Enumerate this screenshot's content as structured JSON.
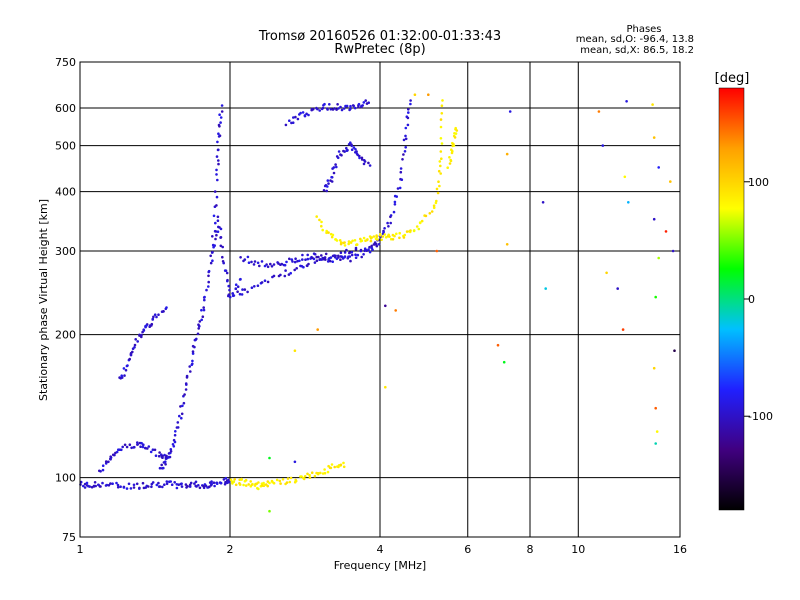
{
  "chart_data": {
    "type": "scatter",
    "title": "Tromsø 20160526 01:32:00-01:33:43",
    "subtitle": "RwPretec (8p)",
    "xlabel": "Frequency [MHz]",
    "ylabel": "Stationary phase Virtual Height [km]",
    "x_scale": "log",
    "y_scale": "log",
    "xlim": [
      1,
      16
    ],
    "ylim": [
      75,
      750
    ],
    "xticks": [
      1,
      2,
      4,
      6,
      8,
      10,
      16
    ],
    "yticks": [
      75,
      100,
      200,
      300,
      400,
      500,
      600,
      750
    ],
    "grid": true,
    "phase_box": {
      "title": "Phases",
      "line1": "mean, sd,O: -96.4, 13.8",
      "line2": "mean, sd,X:  86.5, 18.2"
    },
    "colorbar": {
      "label": "[deg]",
      "ticks": [
        100,
        0,
        -100
      ],
      "range": [
        -180,
        180
      ],
      "colors": [
        "#000000",
        "#400080",
        "#2020ff",
        "#00c0ff",
        "#00ff00",
        "#ffff00",
        "#ffa000",
        "#ff0000"
      ]
    },
    "series": [
      {
        "phase": -96,
        "traces": [
          {
            "x": [
              1.0,
              1.05,
              1.1,
              1.2,
              1.3,
              1.4,
              1.5,
              1.6,
              1.7,
              1.8,
              1.85,
              1.95,
              2.0
            ],
            "y": [
              97,
              96,
              97,
              96,
              96,
              97,
              97,
              96,
              97,
              96,
              97,
              98,
              99
            ]
          },
          {
            "x": [
              1.1,
              1.15,
              1.2,
              1.3,
              1.35,
              1.45,
              1.5
            ],
            "y": [
              103,
              110,
              115,
              118,
              116,
              112,
              110
            ]
          },
          {
            "x": [
              1.2,
              1.25,
              1.3,
              1.35,
              1.4,
              1.5
            ],
            "y": [
              160,
              175,
              195,
              205,
              215,
              230
            ]
          },
          {
            "x": [
              1.45,
              1.5,
              1.55,
              1.6,
              1.65,
              1.7,
              1.75,
              1.8,
              1.85,
              1.88,
              1.9,
              1.92
            ],
            "y": [
              105,
              110,
              120,
              140,
              165,
              190,
              215,
              250,
              310,
              420,
              520,
              600
            ]
          },
          {
            "x": [
              1.85,
              1.9,
              1.95,
              2.0,
              2.1
            ],
            "y": [
              300,
              350,
              280,
              240,
              260
            ]
          },
          {
            "x": [
              2.0,
              2.2,
              2.5,
              2.8,
              3.0,
              3.3,
              3.6,
              4.0
            ],
            "y": [
              240,
              250,
              265,
              280,
              290,
              295,
              300,
              310
            ]
          },
          {
            "x": [
              2.1,
              2.3,
              2.5,
              2.7,
              2.9,
              3.1,
              3.3,
              3.5,
              3.8,
              4.0,
              4.2,
              4.4,
              4.5,
              4.6
            ],
            "y": [
              290,
              282,
              280,
              287,
              294,
              290,
              288,
              290,
              300,
              320,
              350,
              420,
              520,
              630
            ]
          },
          {
            "x": [
              2.6,
              2.8,
              3.0,
              3.2,
              3.4,
              3.6,
              3.8
            ],
            "y": [
              560,
              580,
              600,
              605,
              600,
              610,
              615
            ]
          },
          {
            "x": [
              3.1,
              3.2,
              3.3,
              3.5,
              3.6,
              3.8
            ],
            "y": [
              400,
              430,
              480,
              500,
              480,
              450
            ]
          }
        ]
      },
      {
        "phase": 86,
        "traces": [
          {
            "x": [
              2.0,
              2.1,
              2.2,
              2.3,
              2.4,
              2.6,
              2.8,
              3.0,
              3.2,
              3.4
            ],
            "y": [
              98,
              98,
              97,
              96,
              97,
              98,
              100,
              102,
              105,
              106
            ]
          },
          {
            "x": [
              3.0,
              3.2,
              3.4,
              3.6,
              3.8,
              4.0,
              4.2,
              4.5,
              4.8,
              5.2,
              5.3,
              5.35
            ],
            "y": [
              350,
              320,
              310,
              312,
              318,
              322,
              320,
              325,
              340,
              380,
              460,
              620
            ]
          },
          {
            "x": [
              5.5,
              5.6,
              5.7
            ],
            "y": [
              450,
              500,
              550
            ]
          }
        ]
      }
    ],
    "scattered_points": [
      {
        "x": 7.3,
        "y": 590,
        "phase": -90
      },
      {
        "x": 7.2,
        "y": 480,
        "phase": 120
      },
      {
        "x": 7.2,
        "y": 310,
        "phase": 110
      },
      {
        "x": 6.9,
        "y": 190,
        "phase": 150
      },
      {
        "x": 7.1,
        "y": 175,
        "phase": 20
      },
      {
        "x": 8.6,
        "y": 250,
        "phase": -20
      },
      {
        "x": 8.5,
        "y": 380,
        "phase": -100
      },
      {
        "x": 11.0,
        "y": 590,
        "phase": 140
      },
      {
        "x": 11.2,
        "y": 500,
        "phase": -90
      },
      {
        "x": 11.4,
        "y": 270,
        "phase": 100
      },
      {
        "x": 12.0,
        "y": 250,
        "phase": -100
      },
      {
        "x": 12.5,
        "y": 620,
        "phase": -90
      },
      {
        "x": 12.4,
        "y": 430,
        "phase": 80
      },
      {
        "x": 12.6,
        "y": 380,
        "phase": -30
      },
      {
        "x": 12.3,
        "y": 205,
        "phase": 160
      },
      {
        "x": 14.1,
        "y": 610,
        "phase": 90
      },
      {
        "x": 14.2,
        "y": 520,
        "phase": 110
      },
      {
        "x": 14.5,
        "y": 450,
        "phase": -80
      },
      {
        "x": 14.2,
        "y": 350,
        "phase": -100
      },
      {
        "x": 14.5,
        "y": 290,
        "phase": 60
      },
      {
        "x": 14.3,
        "y": 240,
        "phase": 30
      },
      {
        "x": 14.2,
        "y": 170,
        "phase": 100
      },
      {
        "x": 14.3,
        "y": 140,
        "phase": 150
      },
      {
        "x": 14.4,
        "y": 125,
        "phase": 80
      },
      {
        "x": 14.3,
        "y": 118,
        "phase": -10
      },
      {
        "x": 15.0,
        "y": 330,
        "phase": 170
      },
      {
        "x": 15.5,
        "y": 300,
        "phase": -100
      },
      {
        "x": 15.6,
        "y": 185,
        "phase": -150
      },
      {
        "x": 15.3,
        "y": 420,
        "phase": 110
      },
      {
        "x": 4.1,
        "y": 230,
        "phase": -120
      },
      {
        "x": 4.3,
        "y": 225,
        "phase": 140
      },
      {
        "x": 3.0,
        "y": 205,
        "phase": 130
      },
      {
        "x": 2.7,
        "y": 185,
        "phase": 90
      },
      {
        "x": 4.1,
        "y": 155,
        "phase": 90
      },
      {
        "x": 2.4,
        "y": 85,
        "phase": 50
      },
      {
        "x": 2.4,
        "y": 110,
        "phase": 20
      },
      {
        "x": 2.7,
        "y": 108,
        "phase": -90
      },
      {
        "x": 5.2,
        "y": 300,
        "phase": 150
      },
      {
        "x": 5.0,
        "y": 640,
        "phase": 130
      },
      {
        "x": 4.7,
        "y": 640,
        "phase": 100
      }
    ]
  }
}
